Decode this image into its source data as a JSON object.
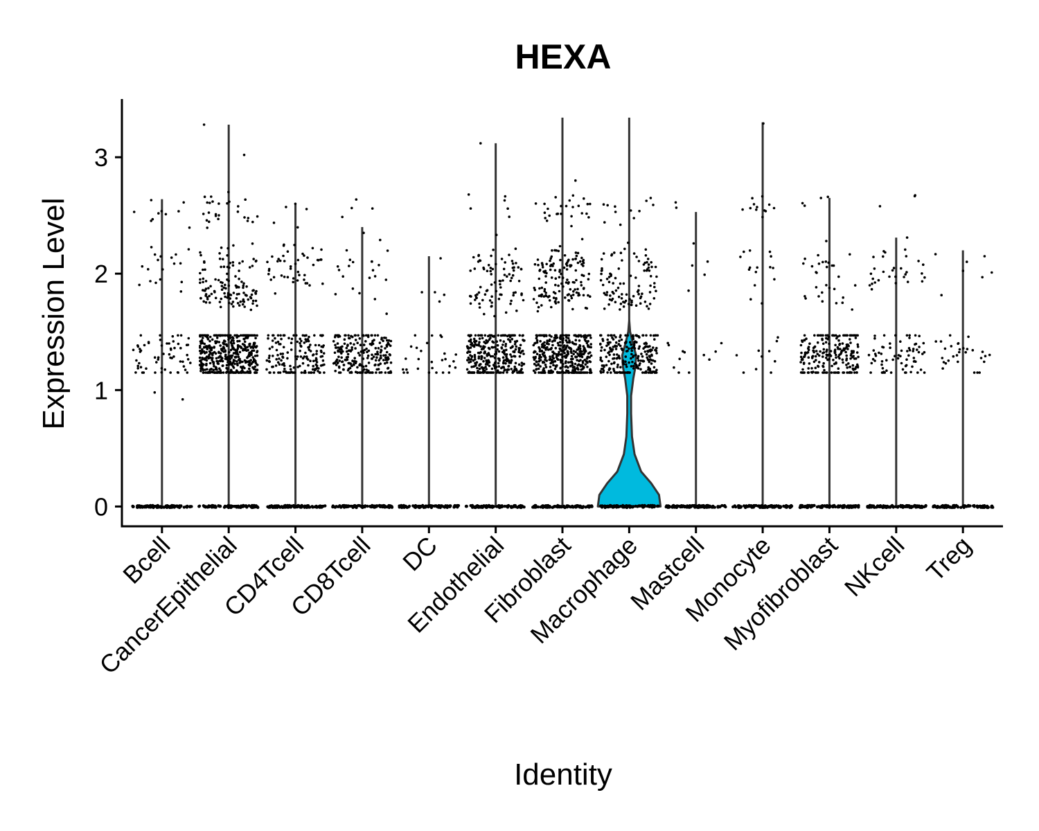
{
  "chart_data": {
    "type": "violin",
    "title": "HEXA",
    "xlabel": "Identity",
    "ylabel": "Expression Level",
    "ylim": [
      -0.17,
      3.5
    ],
    "yticks": [
      0,
      1,
      2,
      3
    ],
    "grid": false,
    "legend": "none",
    "categories": [
      "Bcell",
      "CancerEpithelial",
      "CD4Tcell",
      "CD8Tcell",
      "DC",
      "Endothelial",
      "Fibroblast",
      "Macrophage",
      "Mastcell",
      "Monocyte",
      "Myofibroblast",
      "NKcell",
      "Treg"
    ],
    "violin_max": [
      2.64,
      3.28,
      2.6,
      2.4,
      2.15,
      3.12,
      3.34,
      3.34,
      2.53,
      3.3,
      2.65,
      2.31,
      2.2
    ],
    "colors": {
      "highlight_fill": "#00BADE",
      "violin_line": "#333333",
      "point": "#000000",
      "axis": "#000000"
    },
    "highlight_category": "Macrophage",
    "highlight_density": [
      [
        0,
        1.0
      ],
      [
        0.1,
        0.95
      ],
      [
        0.2,
        0.7
      ],
      [
        0.3,
        0.38
      ],
      [
        0.45,
        0.17
      ],
      [
        0.6,
        0.09
      ],
      [
        0.8,
        0.06
      ],
      [
        0.95,
        0.06
      ],
      [
        1.1,
        0.13
      ],
      [
        1.2,
        0.2
      ],
      [
        1.3,
        0.22
      ],
      [
        1.4,
        0.12
      ],
      [
        1.5,
        0.03
      ],
      [
        1.6,
        0.0
      ]
    ],
    "jitter_bands": [
      {
        "center": 1.3,
        "spread": 0.13
      },
      {
        "center": 1.8,
        "spread": 0.06
      },
      {
        "center": 2.05,
        "spread": 0.1
      },
      {
        "center": 2.55,
        "spread": 0.08
      }
    ],
    "jitter_counts": [
      [
        60,
        0,
        18,
        10
      ],
      [
        450,
        80,
        45,
        25
      ],
      [
        160,
        0,
        45,
        4
      ],
      [
        230,
        3,
        18,
        4
      ],
      [
        28,
        3,
        2,
        0
      ],
      [
        320,
        40,
        45,
        5
      ],
      [
        400,
        60,
        80,
        25
      ],
      [
        240,
        50,
        50,
        10
      ],
      [
        12,
        1,
        2,
        2
      ],
      [
        10,
        2,
        12,
        12
      ],
      [
        220,
        12,
        18,
        3
      ],
      [
        70,
        0,
        30,
        3
      ],
      [
        30,
        0,
        7,
        0
      ]
    ],
    "outliers": [
      [
        0,
        0.92
      ],
      [
        0,
        0.98
      ],
      [
        1,
        3.28
      ],
      [
        1,
        3.02
      ],
      [
        1,
        2.66
      ],
      [
        2,
        2.6
      ],
      [
        3,
        2.35
      ],
      [
        5,
        3.12
      ],
      [
        5,
        2.68
      ],
      [
        6,
        2.8
      ],
      [
        7,
        2.65
      ],
      [
        7,
        2.42
      ],
      [
        8,
        2.26
      ],
      [
        8,
        2.07
      ],
      [
        9,
        3.29
      ],
      [
        9,
        1.9
      ],
      [
        10,
        2.65
      ],
      [
        11,
        2.31
      ]
    ]
  }
}
